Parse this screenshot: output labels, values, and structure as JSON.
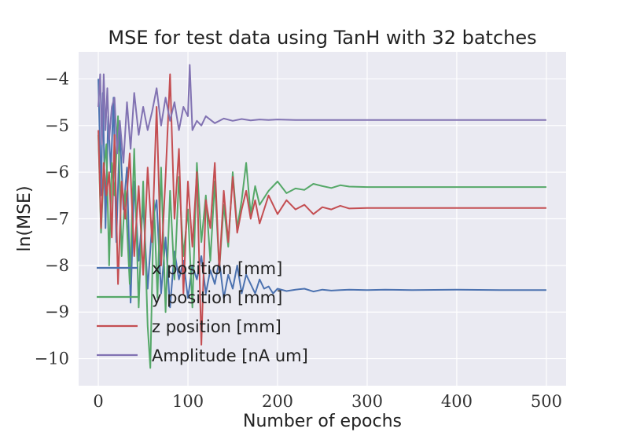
{
  "chart_data": {
    "type": "line",
    "title": "MSE for test data using TanH with 32 batches",
    "xlabel": "Number of epochs",
    "ylabel": "ln(MSE)",
    "xlim": [
      -22,
      522
    ],
    "ylim": [
      -10.58,
      -3.42
    ],
    "xticks": [
      0,
      100,
      200,
      300,
      400,
      500
    ],
    "xtick_labels": [
      "0",
      "100",
      "200",
      "300",
      "400",
      "500"
    ],
    "yticks": [
      -4,
      -5,
      -6,
      -7,
      -8,
      -9,
      -10
    ],
    "ytick_labels": [
      "−4",
      "−5",
      "−6",
      "−7",
      "−8",
      "−9",
      "−10"
    ],
    "grid": true,
    "legend_position": "lower-left",
    "background": "#EAEAF2",
    "series": [
      {
        "name": "x position [mm]",
        "color": "#4C72B0",
        "x": [
          0,
          3,
          5,
          8,
          11,
          14,
          17,
          20,
          24,
          28,
          32,
          36,
          40,
          45,
          50,
          55,
          60,
          65,
          70,
          75,
          80,
          85,
          90,
          95,
          100,
          105,
          110,
          115,
          120,
          125,
          130,
          135,
          140,
          145,
          150,
          155,
          160,
          165,
          170,
          175,
          180,
          185,
          190,
          195,
          200,
          210,
          220,
          230,
          240,
          250,
          260,
          270,
          280,
          300,
          320,
          350,
          400,
          450,
          500
        ],
        "y": [
          -4.0,
          -6.5,
          -4.3,
          -7.2,
          -4.8,
          -6.0,
          -4.4,
          -7.5,
          -5.1,
          -6.8,
          -5.9,
          -8.8,
          -6.2,
          -7.9,
          -6.7,
          -8.5,
          -7.1,
          -6.6,
          -8.6,
          -7.4,
          -8.9,
          -7.7,
          -8.3,
          -7.9,
          -8.7,
          -8.0,
          -8.3,
          -7.8,
          -8.6,
          -8.1,
          -8.4,
          -7.9,
          -8.7,
          -8.2,
          -8.5,
          -8.0,
          -8.6,
          -8.2,
          -8.4,
          -8.6,
          -8.3,
          -8.5,
          -8.45,
          -8.6,
          -8.5,
          -8.55,
          -8.52,
          -8.5,
          -8.56,
          -8.52,
          -8.54,
          -8.53,
          -8.52,
          -8.53,
          -8.52,
          -8.53,
          -8.52,
          -8.53,
          -8.53
        ]
      },
      {
        "name": "y position [mm]",
        "color": "#55A868",
        "x": [
          0,
          3,
          6,
          9,
          12,
          15,
          18,
          22,
          26,
          30,
          35,
          40,
          45,
          50,
          55,
          58,
          62,
          66,
          70,
          75,
          80,
          85,
          90,
          95,
          100,
          105,
          110,
          115,
          120,
          125,
          130,
          135,
          140,
          145,
          150,
          155,
          160,
          165,
          170,
          175,
          180,
          190,
          200,
          210,
          220,
          230,
          240,
          250,
          260,
          270,
          280,
          300,
          320,
          350,
          400,
          450,
          500
        ],
        "y": [
          -5.2,
          -7.3,
          -6.0,
          -5.4,
          -8.0,
          -5.8,
          -6.5,
          -4.8,
          -7.8,
          -6.4,
          -8.4,
          -5.5,
          -8.9,
          -6.2,
          -9.3,
          -10.2,
          -6.6,
          -8.7,
          -5.9,
          -9.0,
          -6.4,
          -8.3,
          -6.1,
          -7.8,
          -6.8,
          -8.9,
          -5.8,
          -7.5,
          -6.5,
          -7.9,
          -6.2,
          -8.1,
          -6.7,
          -7.6,
          -6.0,
          -7.2,
          -6.6,
          -5.8,
          -6.9,
          -6.3,
          -6.7,
          -6.4,
          -6.2,
          -6.45,
          -6.35,
          -6.38,
          -6.25,
          -6.3,
          -6.34,
          -6.28,
          -6.31,
          -6.32,
          -6.32,
          -6.32,
          -6.32,
          -6.32,
          -6.32
        ]
      },
      {
        "name": "z position [mm]",
        "color": "#C44E52",
        "x": [
          0,
          3,
          6,
          9,
          12,
          15,
          18,
          22,
          26,
          30,
          35,
          40,
          45,
          50,
          55,
          60,
          65,
          70,
          75,
          80,
          85,
          90,
          95,
          100,
          105,
          110,
          115,
          120,
          125,
          130,
          135,
          140,
          145,
          150,
          155,
          160,
          165,
          170,
          175,
          180,
          190,
          200,
          210,
          220,
          230,
          240,
          250,
          260,
          270,
          280,
          300,
          320,
          350,
          400,
          450,
          500
        ],
        "y": [
          -5.1,
          -7.2,
          -5.8,
          -6.5,
          -6.0,
          -7.4,
          -5.2,
          -8.4,
          -6.2,
          -7.0,
          -5.6,
          -7.8,
          -6.3,
          -8.2,
          -5.9,
          -7.5,
          -4.6,
          -8.0,
          -6.1,
          -3.9,
          -7.0,
          -5.5,
          -8.6,
          -6.2,
          -7.6,
          -6.0,
          -9.7,
          -6.6,
          -7.2,
          -5.8,
          -8.1,
          -6.4,
          -7.5,
          -6.1,
          -7.3,
          -6.8,
          -6.4,
          -7.0,
          -6.6,
          -7.1,
          -6.5,
          -6.9,
          -6.6,
          -6.8,
          -6.7,
          -6.9,
          -6.75,
          -6.8,
          -6.72,
          -6.78,
          -6.77,
          -6.77,
          -6.77,
          -6.77,
          -6.77,
          -6.77
        ]
      },
      {
        "name": "Amplitude [nA um]",
        "color": "#8172B2",
        "x": [
          0,
          2,
          4,
          6,
          8,
          10,
          12,
          15,
          18,
          21,
          24,
          28,
          32,
          36,
          40,
          45,
          50,
          55,
          60,
          65,
          70,
          75,
          80,
          85,
          90,
          95,
          100,
          102,
          105,
          110,
          115,
          120,
          130,
          140,
          150,
          160,
          170,
          180,
          190,
          200,
          220,
          250,
          300,
          400,
          500
        ],
        "y": [
          -4.6,
          -3.9,
          -5.4,
          -3.9,
          -5.1,
          -4.2,
          -5.3,
          -4.6,
          -4.4,
          -5.6,
          -4.9,
          -5.8,
          -4.5,
          -5.5,
          -4.3,
          -5.2,
          -4.6,
          -5.1,
          -4.7,
          -4.2,
          -5.0,
          -4.4,
          -4.9,
          -4.5,
          -5.1,
          -4.6,
          -4.8,
          -3.7,
          -5.1,
          -4.9,
          -5.0,
          -4.8,
          -4.95,
          -4.85,
          -4.9,
          -4.86,
          -4.89,
          -4.87,
          -4.88,
          -4.87,
          -4.88,
          -4.88,
          -4.88,
          -4.88,
          -4.88
        ]
      }
    ]
  }
}
